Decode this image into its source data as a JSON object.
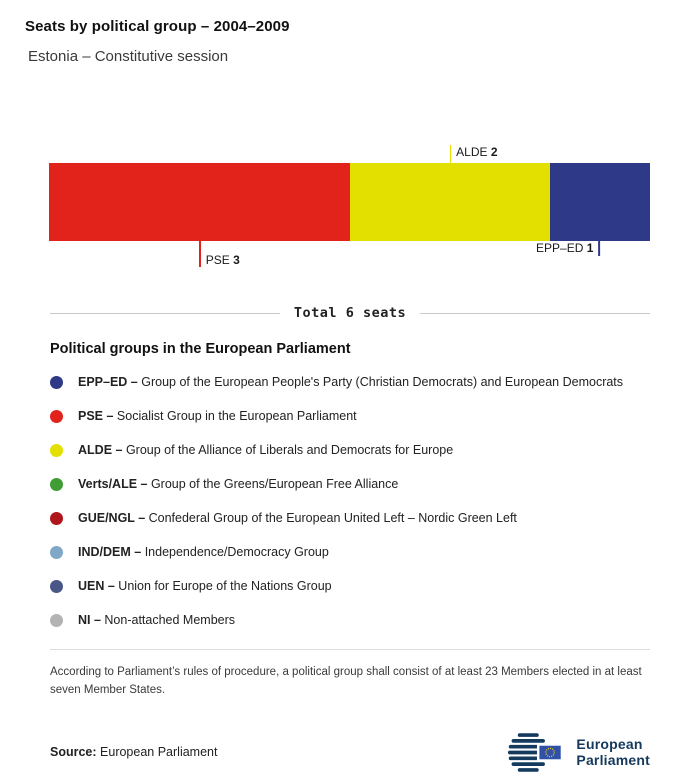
{
  "header": {
    "title": "Seats by political group – 2004–2009",
    "subtitle": "Estonia – Constitutive session"
  },
  "chart_data": {
    "type": "bar",
    "variant": "horizontal-stacked",
    "title": "Seats by political group – 2004–2009",
    "subtitle": "Estonia – Constitutive session",
    "total_seats": 6,
    "total_label": "Total 6 seats",
    "categories": [
      "PSE",
      "ALDE",
      "EPP–ED"
    ],
    "values": [
      3,
      2,
      1
    ],
    "series": [
      {
        "name": "PSE",
        "seats": 3,
        "color": "#e2231b",
        "label_side": "below",
        "text_anchor": "right"
      },
      {
        "name": "ALDE",
        "seats": 2,
        "color": "#e3e000",
        "label_side": "above",
        "text_anchor": "right"
      },
      {
        "name": "EPP–ED",
        "seats": 1,
        "color": "#2e3a87",
        "label_side": "below",
        "text_anchor": "left"
      }
    ]
  },
  "legend": {
    "heading": "Political groups in the European Parliament",
    "items": [
      {
        "abbr": "EPP–ED",
        "description": "Group of the European People's Party (Christian Democrats) and European Democrats",
        "color": "#2e3a87"
      },
      {
        "abbr": "PSE",
        "description": "Socialist Group in the European Parliament",
        "color": "#e2231b"
      },
      {
        "abbr": "ALDE",
        "description": "Group of the Alliance of Liberals and Democrats for Europe",
        "color": "#e3e000"
      },
      {
        "abbr": "Verts/ALE",
        "description": "Group of the Greens/European Free Alliance",
        "color": "#3f9d35"
      },
      {
        "abbr": "GUE/NGL",
        "description": "Confederal Group of the European United Left – Nordic Green Left",
        "color": "#b0151c"
      },
      {
        "abbr": "IND/DEM",
        "description": "Independence/Democracy Group",
        "color": "#7fa8c6"
      },
      {
        "abbr": "UEN",
        "description": "Union for Europe of the Nations Group",
        "color": "#4a5688"
      },
      {
        "abbr": "NI",
        "description": "Non-attached Members",
        "color": "#b3b3b3"
      }
    ]
  },
  "footnote": "According to Parliament’s rules of procedure, a political group shall consist of at least 23 Members elected in at least seven Member States.",
  "source": {
    "label": "Source:",
    "value": "European Parliament"
  },
  "logo": {
    "line1": "European",
    "line2": "Parliament"
  }
}
